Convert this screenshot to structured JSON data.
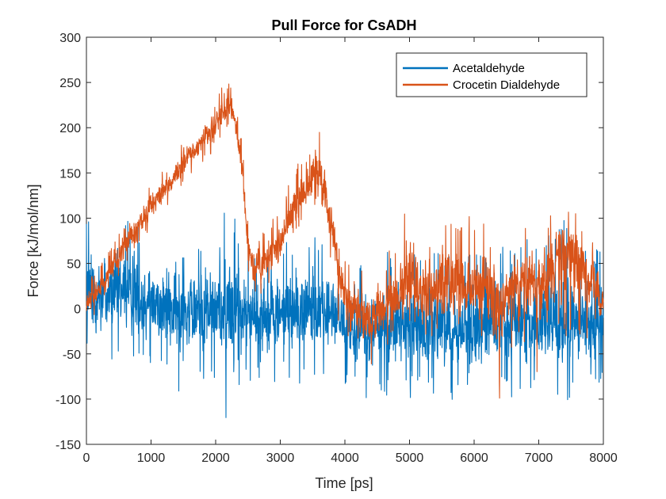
{
  "chart_data": {
    "type": "line",
    "title": "Pull Force for CsADH",
    "xlabel": "Time [ps]",
    "ylabel": "Force [kJ/mol/nm]",
    "xlim": [
      0,
      8000
    ],
    "ylim": [
      -150,
      300
    ],
    "xticks": [
      0,
      1000,
      2000,
      3000,
      4000,
      5000,
      6000,
      7000,
      8000
    ],
    "yticks": [
      -150,
      -100,
      -50,
      0,
      50,
      100,
      150,
      200,
      250,
      300
    ],
    "xtick_labels": [
      "0",
      "1000",
      "2000",
      "3000",
      "4000",
      "5000",
      "6000",
      "7000",
      "8000"
    ],
    "ytick_labels": [
      "-150",
      "-100",
      "-50",
      "0",
      "50",
      "100",
      "150",
      "200",
      "250",
      "300"
    ],
    "grid": false,
    "legend_position": "top-right",
    "series": [
      {
        "name": "Acetaldehyde",
        "color": "#0072BD",
        "x": [
          0,
          200,
          400,
          600,
          800,
          1000,
          1200,
          1400,
          1600,
          1800,
          2000,
          2200,
          2400,
          2600,
          2800,
          3000,
          3200,
          3400,
          3600,
          3800,
          4000,
          4200,
          4400,
          4600,
          4800,
          5000,
          5200,
          5400,
          5600,
          5800,
          6000,
          6200,
          6400,
          6600,
          6800,
          7000,
          7200,
          7400,
          7600,
          7800,
          8000
        ],
        "mean": [
          10,
          15,
          18,
          15,
          12,
          8,
          0,
          -5,
          0,
          0,
          0,
          0,
          -5,
          -8,
          -8,
          -5,
          -5,
          -5,
          -5,
          -5,
          -15,
          -20,
          -25,
          -20,
          -15,
          -20,
          -20,
          -20,
          -25,
          -25,
          -25,
          -20,
          -20,
          -20,
          -20,
          -25,
          -20,
          -20,
          -20,
          -20,
          -20
        ],
        "max": [
          125,
          145,
          130,
          125,
          120,
          110,
          95,
          85,
          80,
          95,
          110,
          165,
          105,
          85,
          95,
          100,
          95,
          100,
          95,
          80,
          75,
          75,
          70,
          95,
          75,
          80,
          90,
          95,
          80,
          70,
          100,
          90,
          100,
          100,
          95,
          110,
          105,
          130,
          100,
          95,
          90
        ],
        "min": [
          -70,
          -75,
          -80,
          -70,
          -75,
          -80,
          -90,
          -125,
          -110,
          -100,
          -105,
          -150,
          -110,
          -100,
          -110,
          -100,
          -110,
          -95,
          -90,
          -95,
          -100,
          -110,
          -140,
          -115,
          -110,
          -105,
          -110,
          -110,
          -110,
          -105,
          -110,
          -110,
          -100,
          -110,
          -110,
          -105,
          -105,
          -130,
          -110,
          -100,
          -100
        ]
      },
      {
        "name": "Crocetin Dialdehyde",
        "color": "#D95319",
        "x": [
          0,
          200,
          400,
          600,
          800,
          1000,
          1200,
          1400,
          1600,
          1800,
          2000,
          2100,
          2200,
          2300,
          2400,
          2500,
          2600,
          2800,
          3000,
          3200,
          3400,
          3500,
          3600,
          3700,
          3800,
          3900,
          4000,
          4200,
          4400,
          4600,
          4800,
          5000,
          5200,
          5400,
          5600,
          5800,
          6000,
          6200,
          6400,
          6600,
          6800,
          7000,
          7200,
          7400,
          7600,
          7800,
          8000
        ],
        "mean": [
          5,
          20,
          45,
          70,
          90,
          110,
          130,
          150,
          170,
          185,
          205,
          215,
          220,
          210,
          160,
          70,
          40,
          55,
          75,
          110,
          130,
          145,
          150,
          120,
          90,
          40,
          10,
          0,
          -20,
          0,
          10,
          30,
          20,
          20,
          30,
          25,
          20,
          25,
          10,
          20,
          30,
          25,
          40,
          70,
          60,
          30,
          10
        ],
        "max": [
          40,
          60,
          85,
          110,
          125,
          145,
          160,
          185,
          200,
          210,
          235,
          260,
          285,
          235,
          200,
          110,
          90,
          100,
          120,
          170,
          180,
          200,
          220,
          190,
          160,
          90,
          70,
          70,
          55,
          85,
          90,
          155,
          110,
          115,
          120,
          110,
          110,
          130,
          75,
          85,
          110,
          105,
          125,
          130,
          120,
          80,
          75
        ],
        "min": [
          -25,
          -5,
          15,
          40,
          60,
          80,
          100,
          120,
          140,
          155,
          170,
          180,
          185,
          170,
          120,
          30,
          0,
          10,
          30,
          70,
          85,
          100,
          110,
          70,
          30,
          -20,
          -40,
          -50,
          -80,
          -60,
          -50,
          -80,
          -60,
          -50,
          -60,
          -40,
          -50,
          -55,
          -110,
          -60,
          -70,
          -105,
          -50,
          -60,
          -60,
          -50,
          -40
        ]
      }
    ]
  }
}
